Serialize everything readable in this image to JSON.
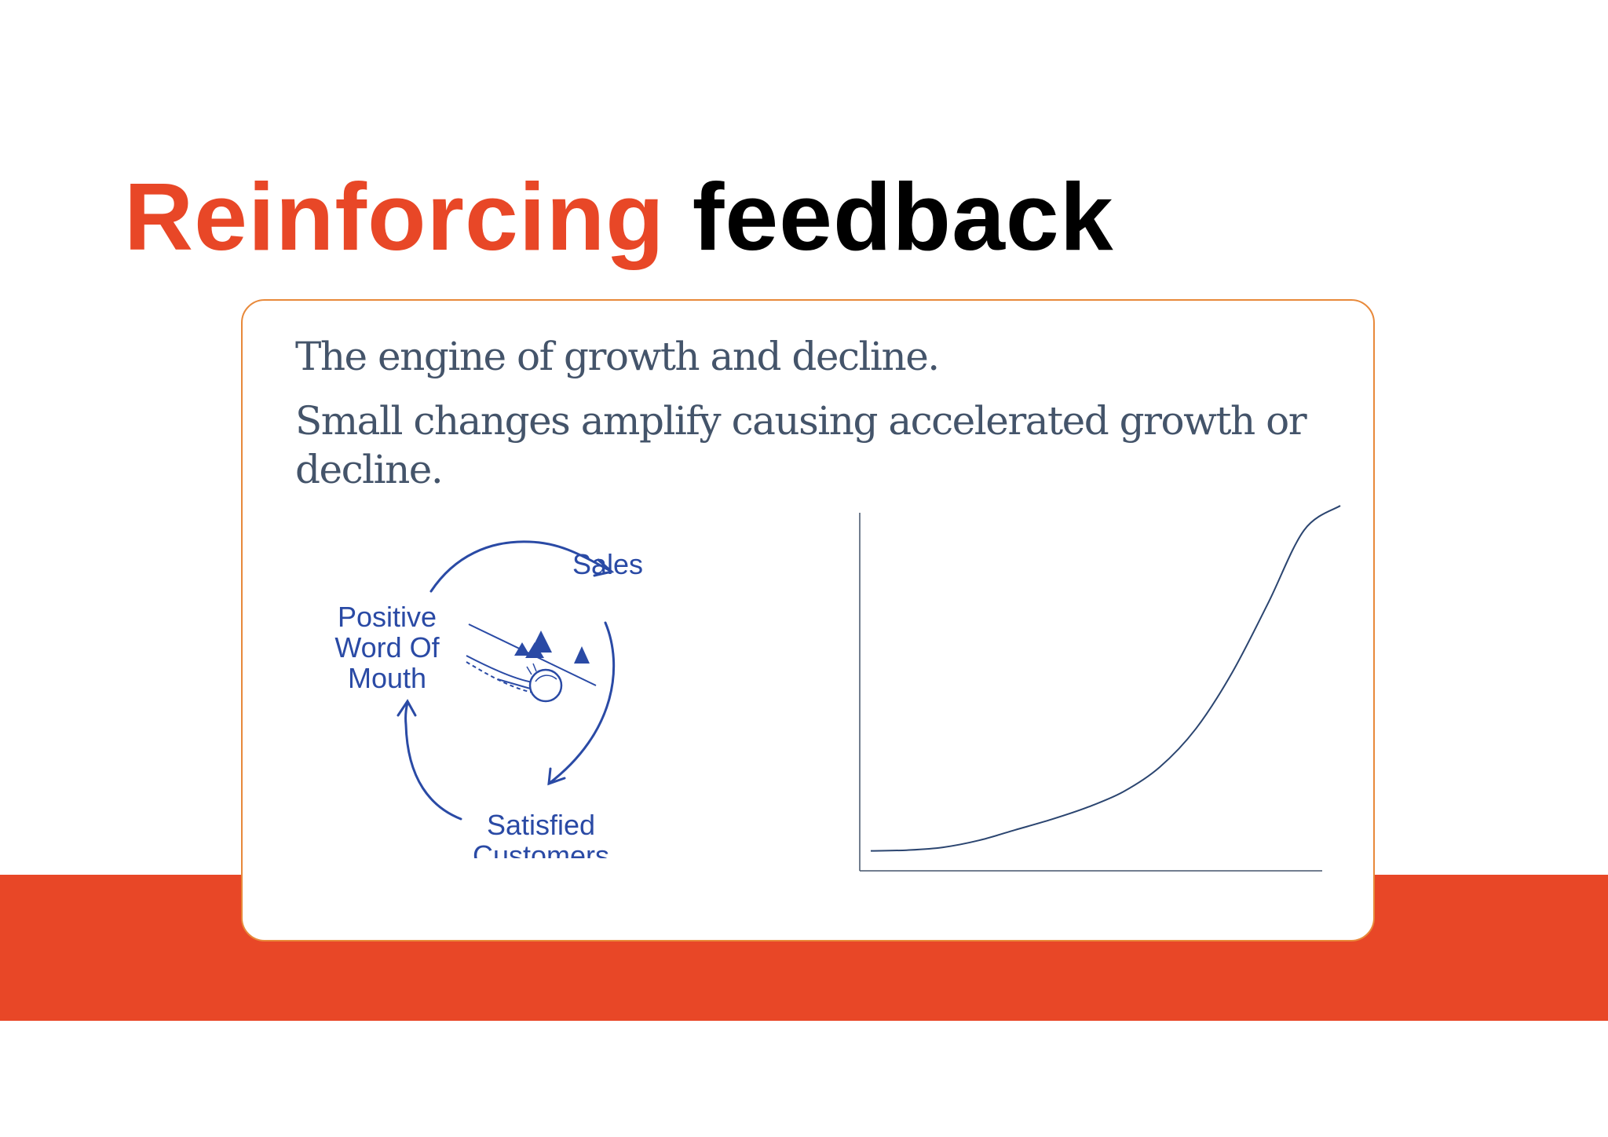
{
  "slide": {
    "title_colored": "Reinforcing",
    "title_plain": "feedback",
    "lines": [
      "The engine of growth and decline.",
      "Small changes amplify causing accelerated growth or decline."
    ]
  },
  "loop_diagram": {
    "nodes": {
      "sales": "Sales",
      "word_line1": "Positive",
      "word_line2": "Word Of",
      "word_line3": "Mouth",
      "satisfied_line1": "Satisfied",
      "satisfied_line2": "Customers"
    },
    "icon": "snowball-rolling-downhill-icon"
  },
  "chart_data": {
    "type": "line",
    "title": "",
    "xlabel": "",
    "ylabel": "",
    "axes": "unlabeled",
    "series": [
      {
        "values": [
          0.01,
          0.012,
          0.02,
          0.04,
          0.07,
          0.1,
          0.135,
          0.18,
          0.25,
          0.36,
          0.52,
          0.72,
          0.93,
          1.0
        ]
      }
    ]
  },
  "colors": {
    "accent": "#e84727",
    "title_dark": "#000000",
    "body_text": "#44546a",
    "card_border": "#e8893a",
    "diagram_blue": "#2a4aa5",
    "curve": "#2b4570"
  }
}
